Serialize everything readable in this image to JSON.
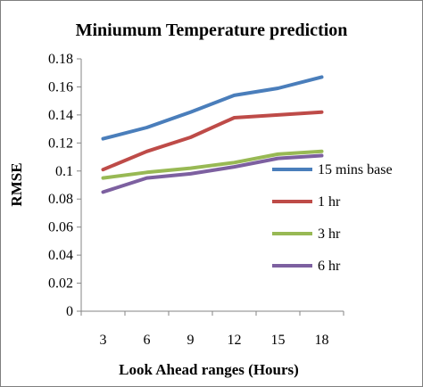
{
  "chart_data": {
    "type": "line",
    "title": "Miniumum Temperature prediction",
    "xlabel": "Look Ahead ranges  (Hours)",
    "ylabel": "RMSE",
    "categories": [
      "3",
      "6",
      "9",
      "12",
      "15",
      "18"
    ],
    "ylim": [
      0,
      0.18
    ],
    "yticks": [
      "0",
      "0.02",
      "0.04",
      "0.06",
      "0.08",
      "0.1",
      "0.12",
      "0.14",
      "0.16",
      "0.18"
    ],
    "grid": false,
    "legend_position": "right",
    "series": [
      {
        "name": "15 mins base",
        "color": "#4a7ebb",
        "values": [
          0.123,
          0.131,
          0.142,
          0.154,
          0.159,
          0.167
        ]
      },
      {
        "name": "1 hr",
        "color": "#be4b48",
        "values": [
          0.101,
          0.114,
          0.124,
          0.138,
          0.14,
          0.142
        ]
      },
      {
        "name": "3 hr",
        "color": "#98b954",
        "values": [
          0.095,
          0.099,
          0.102,
          0.106,
          0.112,
          0.114
        ]
      },
      {
        "name": "6 hr",
        "color": "#7d60a0",
        "values": [
          0.085,
          0.095,
          0.098,
          0.103,
          0.109,
          0.111
        ]
      }
    ]
  }
}
